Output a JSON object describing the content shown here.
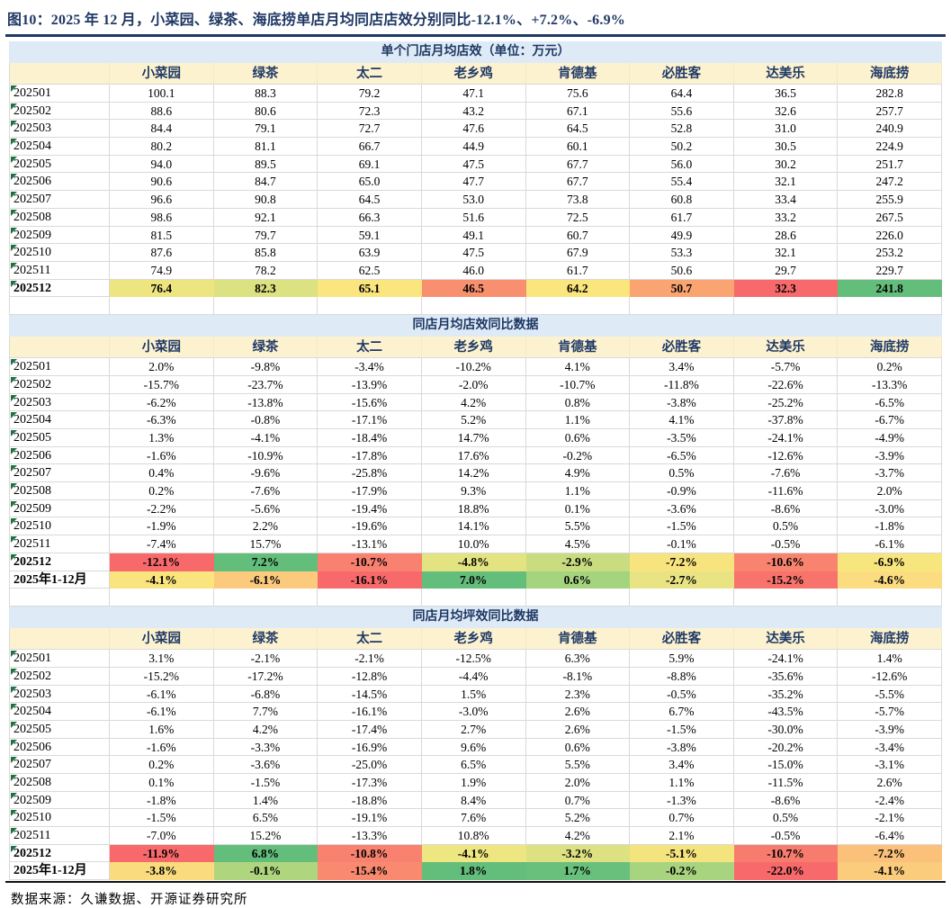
{
  "figure": {
    "title": "图10：2025 年 12 月，小菜园、绿茶、海底捞单店月均同店店效分别同比-12.1%、+7.2%、-6.9%",
    "source": "数据来源：久谦数据、开源证券研究所"
  },
  "palette": {
    "title_navy": "#1F3864",
    "section_header_bg": "#DEEBF7",
    "column_header_bg": "#FDF2D0",
    "gridline": "#D9D9D9",
    "text_marker_green": "#1E7145",
    "scale_red": "#F8696B",
    "scale_yellow": "#FFEB84",
    "scale_green": "#63BE7B"
  },
  "columns": [
    "小菜园",
    "绿茶",
    "太二",
    "老乡鸡",
    "肯德基",
    "必胜客",
    "达美乐",
    "海底捞"
  ],
  "tables": [
    {
      "section_title": "单个门店月均店效（单位：万元）",
      "rows": [
        {
          "label": "202501",
          "marker": true,
          "bold": false,
          "values": [
            "100.1",
            "88.3",
            "79.2",
            "47.1",
            "75.6",
            "64.4",
            "36.5",
            "282.8"
          ]
        },
        {
          "label": "202502",
          "marker": true,
          "bold": false,
          "values": [
            "88.6",
            "80.6",
            "72.3",
            "43.2",
            "67.1",
            "55.6",
            "32.6",
            "257.7"
          ]
        },
        {
          "label": "202503",
          "marker": true,
          "bold": false,
          "values": [
            "84.4",
            "79.1",
            "72.7",
            "47.6",
            "64.5",
            "52.8",
            "31.0",
            "240.9"
          ]
        },
        {
          "label": "202504",
          "marker": true,
          "bold": false,
          "values": [
            "80.2",
            "81.1",
            "66.7",
            "44.9",
            "60.1",
            "50.2",
            "30.5",
            "224.9"
          ]
        },
        {
          "label": "202505",
          "marker": true,
          "bold": false,
          "values": [
            "94.0",
            "89.5",
            "69.1",
            "47.5",
            "67.7",
            "56.0",
            "30.2",
            "251.7"
          ]
        },
        {
          "label": "202506",
          "marker": true,
          "bold": false,
          "values": [
            "90.6",
            "84.7",
            "65.0",
            "47.7",
            "67.7",
            "55.4",
            "32.1",
            "247.2"
          ]
        },
        {
          "label": "202507",
          "marker": true,
          "bold": false,
          "values": [
            "96.6",
            "90.8",
            "64.5",
            "53.0",
            "73.8",
            "60.8",
            "33.4",
            "255.9"
          ]
        },
        {
          "label": "202508",
          "marker": true,
          "bold": false,
          "values": [
            "98.6",
            "92.1",
            "66.3",
            "51.6",
            "72.5",
            "61.7",
            "33.2",
            "267.5"
          ]
        },
        {
          "label": "202509",
          "marker": true,
          "bold": false,
          "values": [
            "81.5",
            "79.7",
            "59.1",
            "49.1",
            "60.7",
            "49.9",
            "28.6",
            "226.0"
          ]
        },
        {
          "label": "202510",
          "marker": true,
          "bold": false,
          "values": [
            "87.6",
            "85.8",
            "63.9",
            "47.5",
            "67.9",
            "53.3",
            "32.1",
            "253.2"
          ]
        },
        {
          "label": "202511",
          "marker": true,
          "bold": false,
          "values": [
            "74.9",
            "78.2",
            "62.5",
            "46.0",
            "61.7",
            "50.6",
            "29.7",
            "229.7"
          ]
        },
        {
          "label": "202512",
          "marker": true,
          "bold": true,
          "values": [
            "76.4",
            "82.3",
            "65.1",
            "46.5",
            "64.2",
            "50.7",
            "32.3",
            "241.8"
          ],
          "colors": [
            "#EDE57F",
            "#DCE181",
            "#FAE57E",
            "#F8906F",
            "#FBE67E",
            "#F9A471",
            "#F8696B",
            "#63BE7B"
          ]
        }
      ]
    },
    {
      "section_title": "同店月均店效同比数据",
      "rows": [
        {
          "label": "202501",
          "marker": true,
          "bold": false,
          "values": [
            "2.0%",
            "-9.8%",
            "-3.4%",
            "-10.2%",
            "4.1%",
            "3.4%",
            "-5.7%",
            "0.2%"
          ]
        },
        {
          "label": "202502",
          "marker": true,
          "bold": false,
          "values": [
            "-15.7%",
            "-23.7%",
            "-13.9%",
            "-2.0%",
            "-10.7%",
            "-11.8%",
            "-22.6%",
            "-13.3%"
          ]
        },
        {
          "label": "202503",
          "marker": true,
          "bold": false,
          "values": [
            "-6.2%",
            "-13.8%",
            "-15.6%",
            "4.2%",
            "0.8%",
            "-3.8%",
            "-25.2%",
            "-6.5%"
          ]
        },
        {
          "label": "202504",
          "marker": true,
          "bold": false,
          "values": [
            "-6.3%",
            "-0.8%",
            "-17.1%",
            "5.2%",
            "1.1%",
            "4.1%",
            "-37.8%",
            "-6.7%"
          ]
        },
        {
          "label": "202505",
          "marker": true,
          "bold": false,
          "values": [
            "1.3%",
            "-4.1%",
            "-18.4%",
            "14.7%",
            "0.6%",
            "-3.5%",
            "-24.1%",
            "-4.9%"
          ]
        },
        {
          "label": "202506",
          "marker": true,
          "bold": false,
          "values": [
            "-1.6%",
            "-10.9%",
            "-17.8%",
            "17.6%",
            "-0.2%",
            "-6.5%",
            "-12.6%",
            "-3.9%"
          ]
        },
        {
          "label": "202507",
          "marker": true,
          "bold": false,
          "values": [
            "0.4%",
            "-9.6%",
            "-25.8%",
            "14.2%",
            "4.9%",
            "0.5%",
            "-7.6%",
            "-3.7%"
          ]
        },
        {
          "label": "202508",
          "marker": true,
          "bold": false,
          "values": [
            "0.2%",
            "-7.6%",
            "-17.9%",
            "9.3%",
            "1.1%",
            "-0.9%",
            "-11.6%",
            "2.0%"
          ]
        },
        {
          "label": "202509",
          "marker": true,
          "bold": false,
          "values": [
            "-2.2%",
            "-5.6%",
            "-19.4%",
            "18.8%",
            "0.1%",
            "-3.6%",
            "-8.6%",
            "-3.0%"
          ]
        },
        {
          "label": "202510",
          "marker": true,
          "bold": false,
          "values": [
            "-1.9%",
            "2.2%",
            "-19.6%",
            "14.1%",
            "5.5%",
            "-1.5%",
            "0.5%",
            "-1.8%"
          ]
        },
        {
          "label": "202511",
          "marker": true,
          "bold": false,
          "values": [
            "-7.4%",
            "15.7%",
            "-13.1%",
            "10.0%",
            "4.5%",
            "-0.1%",
            "-0.5%",
            "-6.1%"
          ]
        },
        {
          "label": "202512",
          "marker": true,
          "bold": true,
          "values": [
            "-12.1%",
            "7.2%",
            "-10.7%",
            "-4.8%",
            "-2.9%",
            "-7.2%",
            "-10.6%",
            "-6.9%"
          ],
          "colors": [
            "#F8696B",
            "#63BE7B",
            "#F8816F",
            "#E3E382",
            "#C9DC80",
            "#F7E47E",
            "#F8836F",
            "#F7E57E"
          ]
        },
        {
          "label": "2025年1-12月",
          "marker": false,
          "bold": true,
          "values": [
            "-4.1%",
            "-6.1%",
            "-16.1%",
            "7.0%",
            "0.6%",
            "-2.7%",
            "-15.2%",
            "-4.6%"
          ],
          "colors": [
            "#F9E47D",
            "#FBCA7D",
            "#F8696B",
            "#63BE7B",
            "#A5D47F",
            "#E8E483",
            "#F8736C",
            "#FCDC80"
          ]
        }
      ]
    },
    {
      "section_title": "同店月均坪效同比数据",
      "rows": [
        {
          "label": "202501",
          "marker": true,
          "bold": false,
          "values": [
            "3.1%",
            "-2.1%",
            "-2.1%",
            "-12.5%",
            "6.3%",
            "5.9%",
            "-24.1%",
            "1.4%"
          ]
        },
        {
          "label": "202502",
          "marker": true,
          "bold": false,
          "values": [
            "-15.2%",
            "-17.2%",
            "-12.8%",
            "-4.4%",
            "-8.1%",
            "-8.8%",
            "-35.6%",
            "-12.6%"
          ]
        },
        {
          "label": "202503",
          "marker": true,
          "bold": false,
          "values": [
            "-6.1%",
            "-6.8%",
            "-14.5%",
            "1.5%",
            "2.3%",
            "-0.5%",
            "-35.2%",
            "-5.5%"
          ]
        },
        {
          "label": "202504",
          "marker": true,
          "bold": false,
          "values": [
            "-6.1%",
            "7.7%",
            "-16.1%",
            "-3.0%",
            "2.6%",
            "6.7%",
            "-43.5%",
            "-5.7%"
          ]
        },
        {
          "label": "202505",
          "marker": true,
          "bold": false,
          "values": [
            "1.6%",
            "4.2%",
            "-17.4%",
            "2.7%",
            "2.6%",
            "-1.5%",
            "-30.0%",
            "-3.9%"
          ]
        },
        {
          "label": "202506",
          "marker": true,
          "bold": false,
          "values": [
            "-1.6%",
            "-3.3%",
            "-16.9%",
            "9.6%",
            "0.6%",
            "-3.8%",
            "-20.2%",
            "-3.4%"
          ]
        },
        {
          "label": "202507",
          "marker": true,
          "bold": false,
          "values": [
            "0.2%",
            "-3.6%",
            "-25.0%",
            "6.5%",
            "5.5%",
            "3.4%",
            "-15.0%",
            "-3.1%"
          ]
        },
        {
          "label": "202508",
          "marker": true,
          "bold": false,
          "values": [
            "0.1%",
            "-1.5%",
            "-17.3%",
            "1.9%",
            "2.0%",
            "1.1%",
            "-11.5%",
            "2.6%"
          ]
        },
        {
          "label": "202509",
          "marker": true,
          "bold": false,
          "values": [
            "-1.8%",
            "1.4%",
            "-18.8%",
            "8.4%",
            "0.7%",
            "-1.3%",
            "-8.6%",
            "-2.4%"
          ]
        },
        {
          "label": "202510",
          "marker": true,
          "bold": false,
          "values": [
            "-1.5%",
            "6.5%",
            "-19.1%",
            "7.6%",
            "5.2%",
            "0.7%",
            "0.5%",
            "-2.1%"
          ]
        },
        {
          "label": "202511",
          "marker": true,
          "bold": false,
          "values": [
            "-7.0%",
            "15.2%",
            "-13.3%",
            "10.8%",
            "4.2%",
            "2.1%",
            "-0.5%",
            "-6.4%"
          ]
        },
        {
          "label": "202512",
          "marker": true,
          "bold": true,
          "values": [
            "-11.9%",
            "6.8%",
            "-10.8%",
            "-4.1%",
            "-3.2%",
            "-5.1%",
            "-10.7%",
            "-7.2%"
          ],
          "colors": [
            "#F8696B",
            "#63BE7B",
            "#F8826F",
            "#EDE681",
            "#DDE181",
            "#F3E47E",
            "#F87C6E",
            "#FBC17A"
          ]
        },
        {
          "label": "2025年1-12月",
          "marker": false,
          "bold": true,
          "values": [
            "-3.8%",
            "-0.1%",
            "-15.4%",
            "1.8%",
            "1.7%",
            "-0.2%",
            "-22.0%",
            "-4.1%"
          ],
          "colors": [
            "#FADC7E",
            "#AFD67F",
            "#F98A70",
            "#63BE7B",
            "#68C07C",
            "#A9D47F",
            "#F8696B",
            "#FBCC7C"
          ]
        }
      ]
    }
  ]
}
